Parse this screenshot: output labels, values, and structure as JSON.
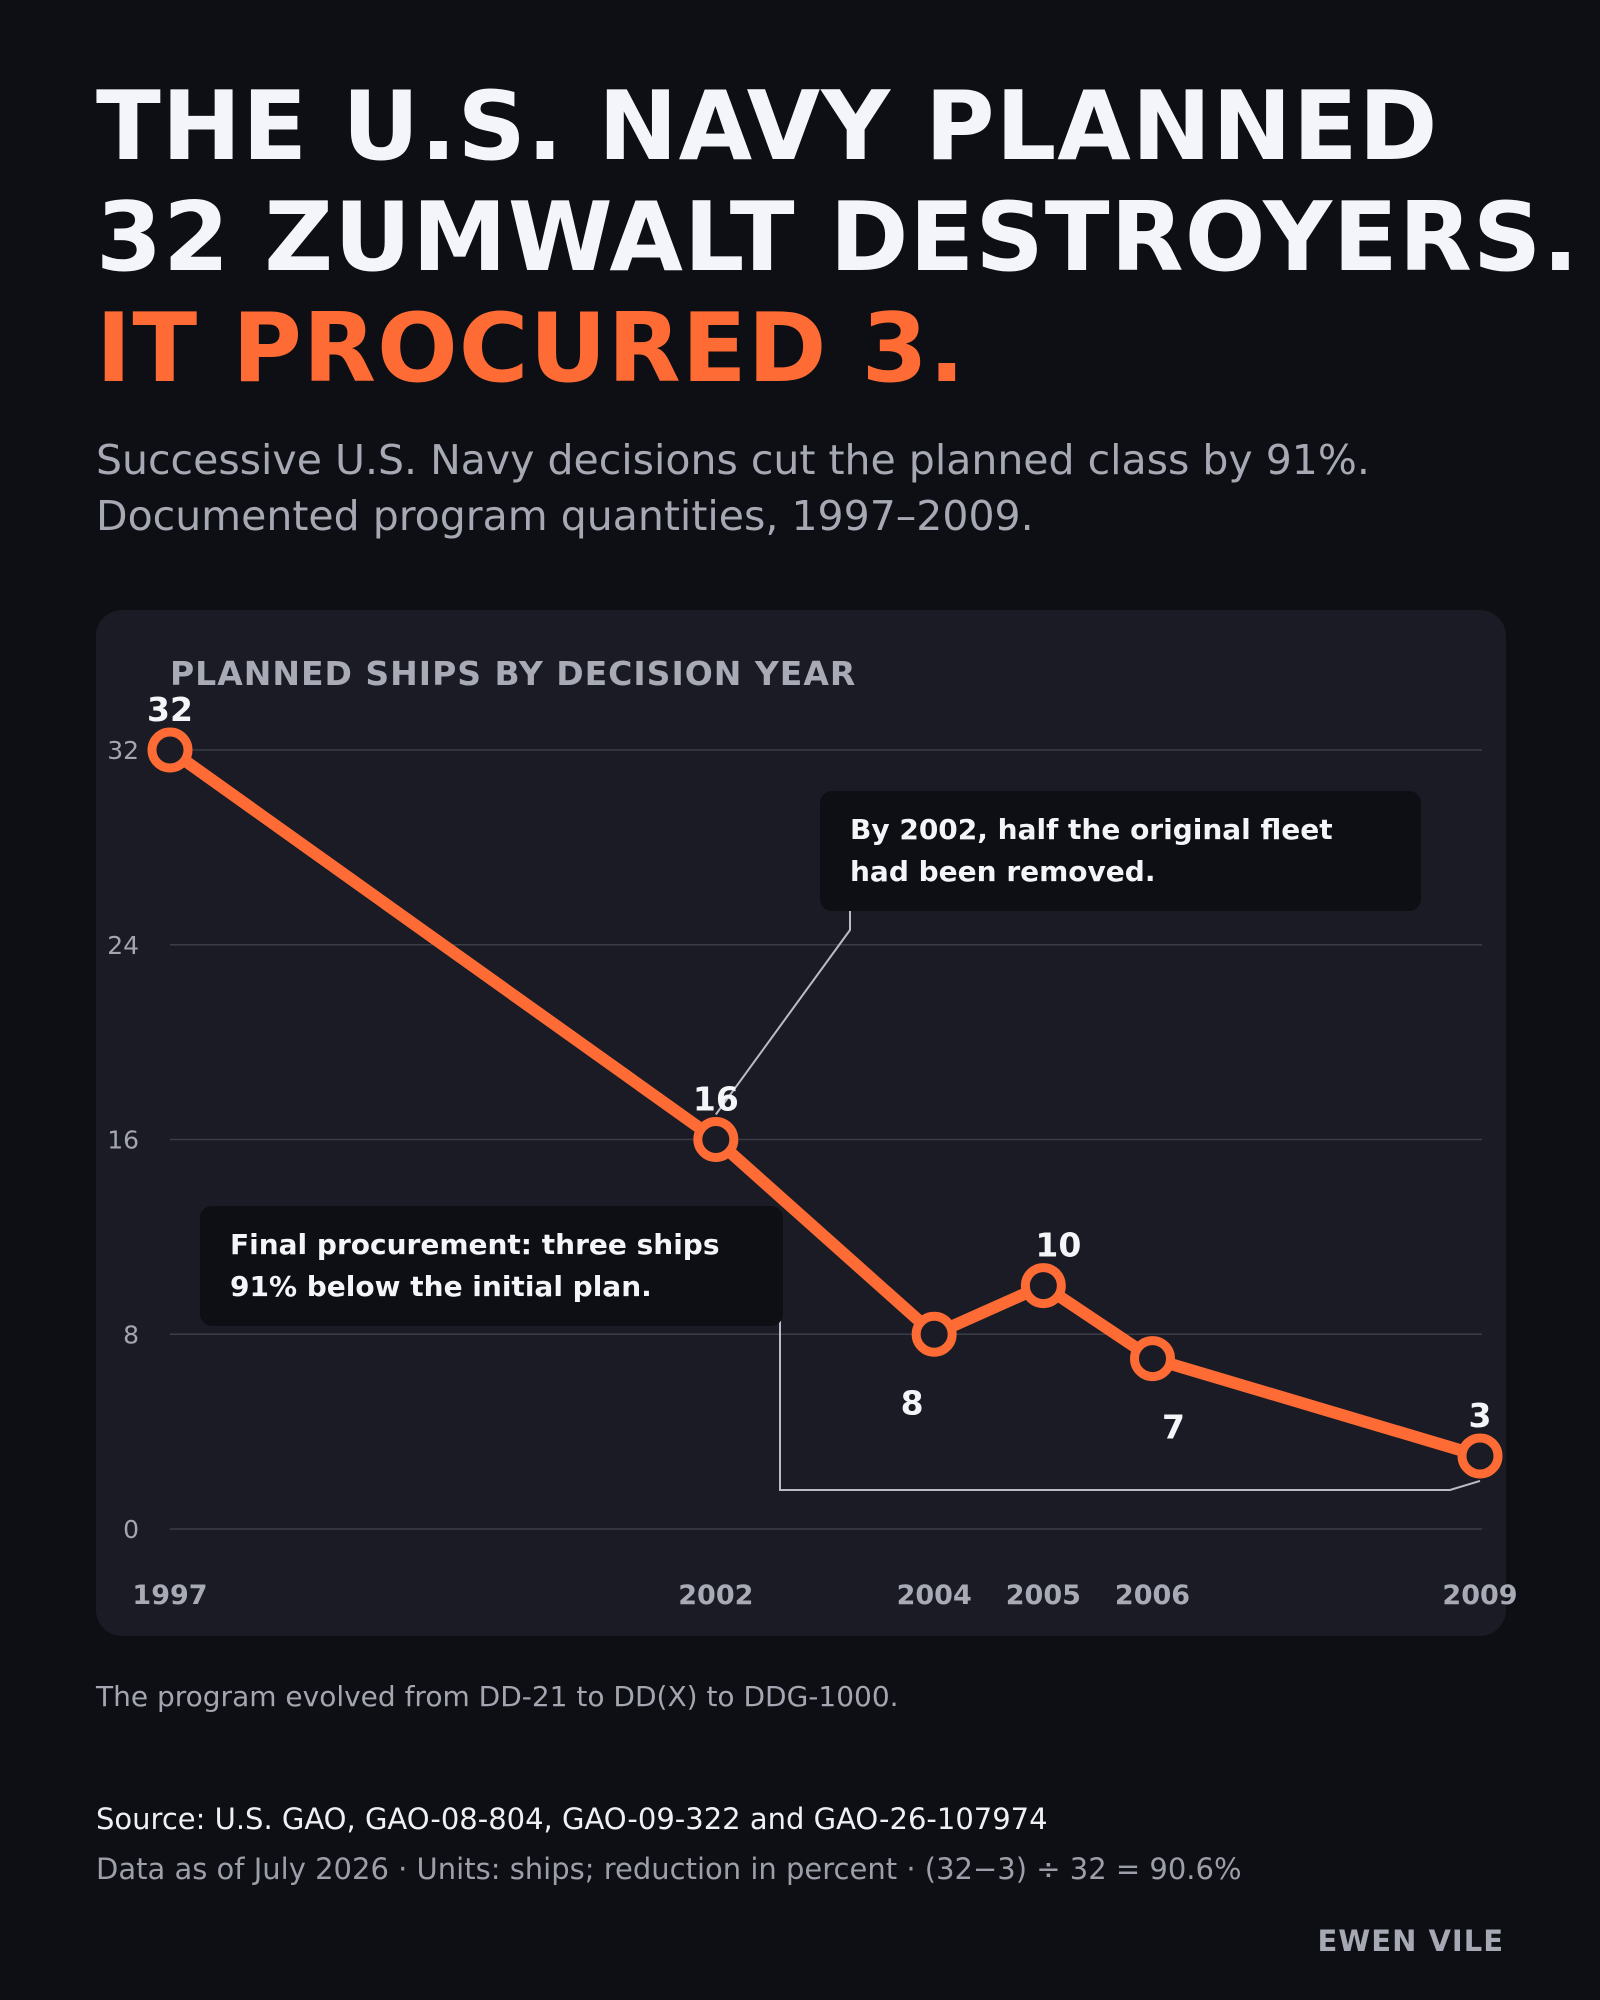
{
  "headline": {
    "line1": "THE U.S. NAVY PLANNED",
    "line2": "32 ZUMWALT DESTROYERS.",
    "line3": "IT PROCURED 3."
  },
  "subtitle": {
    "line1": "Successive U.S. Navy decisions cut the planned class by 91%.",
    "line2": "Documented program quantities, 1997–2009."
  },
  "colors": {
    "background": "#0d0f14",
    "panel": "#1a1b24",
    "accent": "#ff6b35",
    "annotation_box": "#0e0f14"
  },
  "chart_data": {
    "type": "line",
    "title": "PLANNED SHIPS BY DECISION YEAR",
    "x": [
      1997,
      2002,
      2004,
      2005,
      2006,
      2009
    ],
    "series": [
      {
        "values": [
          32,
          16,
          8,
          10,
          7,
          3
        ]
      }
    ],
    "data_labels": [
      "32",
      "16",
      "8",
      "10",
      "7",
      "3"
    ],
    "y_ticks": [
      0,
      8,
      16,
      24,
      32
    ],
    "x_tick_labels": [
      "1997",
      "2002",
      "2004",
      "2005",
      "2006",
      "2009"
    ],
    "ylim": [
      0,
      32
    ],
    "xlim": [
      1997,
      2009
    ],
    "grid": "horizontal",
    "annotations": [
      {
        "x": 2002,
        "y": 16,
        "text_line1": "By 2002, half the original fleet",
        "text_line2": "had been removed."
      },
      {
        "x": 2009,
        "y": 3,
        "text_line1": "Final procurement: three ships",
        "text_line2": "91% below the initial plan."
      }
    ]
  },
  "footer": {
    "note": "The program evolved from DD-21 to DD(X) to DDG-1000.",
    "source": "Source: U.S. GAO, GAO-08-804, GAO-09-322 and GAO-26-107974",
    "data_line": "Data as of July 2026 · Units: ships; reduction in percent · (32−3) ÷ 32 = 90.6%",
    "signature": "EWEN VILE"
  }
}
